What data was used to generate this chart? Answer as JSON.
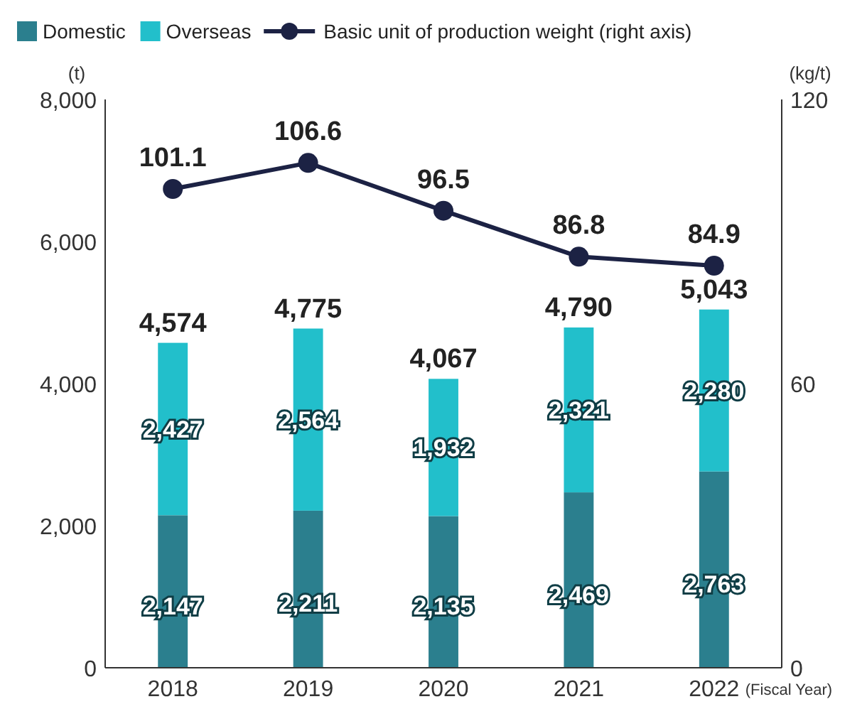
{
  "chart_data": {
    "type": "bar",
    "stacked": true,
    "categories": [
      "2018",
      "2019",
      "2020",
      "2021",
      "2022"
    ],
    "xlabel": "(Fiscal Year)",
    "ylabel": "(t)",
    "y2label": "(kg/t)",
    "ylim": [
      0,
      8000
    ],
    "yticks": [
      {
        "value": 0,
        "label": "0"
      },
      {
        "value": 2000,
        "label": "2,000"
      },
      {
        "value": 4000,
        "label": "4,000"
      },
      {
        "value": 6000,
        "label": "6,000"
      },
      {
        "value": 8000,
        "label": "8,000"
      }
    ],
    "y2lim": [
      0,
      120
    ],
    "y2ticks": [
      0,
      60,
      120
    ],
    "legend": "top left",
    "marker": "circle",
    "line_style": "solid",
    "series": [
      {
        "name": "Domestic",
        "color": "#2b7f8e",
        "values": [
          2147,
          2211,
          2135,
          2469,
          2763
        ],
        "value_labels": [
          "2,147",
          "2,211",
          "2,135",
          "2,469",
          "2,763"
        ]
      },
      {
        "name": "Overseas",
        "color": "#22bfcb",
        "values": [
          2427,
          2564,
          1932,
          2321,
          2280
        ],
        "value_labels": [
          "2,427",
          "2,564",
          "1,932",
          "2,321",
          "2,280"
        ]
      },
      {
        "name": "Basic unit of production weight (right axis)",
        "type": "line",
        "axis": "y2",
        "color": "#1c2244",
        "values": [
          101.1,
          106.6,
          96.5,
          86.8,
          84.9
        ],
        "value_labels": [
          "101.1",
          "106.6",
          "96.5",
          "86.8",
          "84.9"
        ]
      }
    ],
    "totals": [
      "4,574",
      "4,775",
      "4,067",
      "4,790",
      "5,043"
    ]
  }
}
